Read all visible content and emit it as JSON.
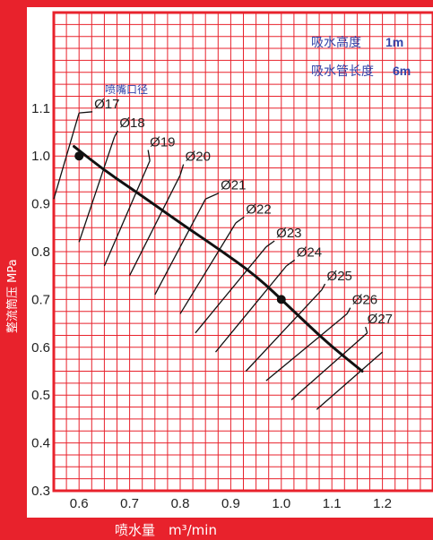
{
  "chart_data": {
    "type": "line",
    "xlabel_text": "喷水量",
    "xlabel_unit": "m³/min",
    "ylabel": "整流筒压 MPa",
    "xlim": [
      0.55,
      1.3
    ],
    "ylim": [
      0.3,
      1.3
    ],
    "xticks": [
      "0.6",
      "0.7",
      "0.8",
      "0.9",
      "1.0",
      "1.1",
      "1.2"
    ],
    "yticks": [
      "0.3",
      "0.4",
      "0.5",
      "0.6",
      "0.7",
      "0.8",
      "0.9",
      "1.0",
      "1.1"
    ],
    "series": [
      {
        "x": [
          0.59,
          0.65,
          0.72,
          0.8,
          0.87,
          0.95,
          1.02,
          1.09,
          1.16
        ],
        "y": [
          1.02,
          0.97,
          0.92,
          0.86,
          0.81,
          0.75,
          0.68,
          0.61,
          0.55
        ]
      }
    ],
    "points": [
      {
        "x": 0.6,
        "y": 1.0
      },
      {
        "x": 1.0,
        "y": 0.7
      }
    ],
    "nozzle_caption": "喷嘴口径",
    "nozzles": [
      {
        "label": "Ø17",
        "x1": 0.55,
        "y1": 0.91,
        "x2": 0.6,
        "y2": 1.09,
        "lx": 0.63,
        "ly": 1.1
      },
      {
        "label": "Ø18",
        "x1": 0.6,
        "y1": 0.82,
        "x2": 0.67,
        "y2": 1.04,
        "lx": 0.68,
        "ly": 1.06
      },
      {
        "label": "Ø19",
        "x1": 0.65,
        "y1": 0.77,
        "x2": 0.74,
        "y2": 0.99,
        "lx": 0.74,
        "ly": 1.02
      },
      {
        "label": "Ø20",
        "x1": 0.7,
        "y1": 0.75,
        "x2": 0.8,
        "y2": 0.96,
        "lx": 0.81,
        "ly": 0.99
      },
      {
        "label": "Ø21",
        "x1": 0.75,
        "y1": 0.71,
        "x2": 0.85,
        "y2": 0.91,
        "lx": 0.88,
        "ly": 0.93
      },
      {
        "label": "Ø22",
        "x1": 0.8,
        "y1": 0.67,
        "x2": 0.91,
        "y2": 0.86,
        "lx": 0.93,
        "ly": 0.88
      },
      {
        "label": "Ø23",
        "x1": 0.83,
        "y1": 0.63,
        "x2": 0.97,
        "y2": 0.81,
        "lx": 0.99,
        "ly": 0.83
      },
      {
        "label": "Ø24",
        "x1": 0.87,
        "y1": 0.59,
        "x2": 1.01,
        "y2": 0.77,
        "lx": 1.03,
        "ly": 0.79
      },
      {
        "label": "Ø25",
        "x1": 0.93,
        "y1": 0.55,
        "x2": 1.08,
        "y2": 0.72,
        "lx": 1.09,
        "ly": 0.74
      },
      {
        "label": "Ø26",
        "x1": 0.97,
        "y1": 0.53,
        "x2": 1.13,
        "y2": 0.67,
        "lx": 1.14,
        "ly": 0.69
      },
      {
        "label": "Ø27",
        "x1": 1.02,
        "y1": 0.49,
        "x2": 1.17,
        "y2": 0.63,
        "lx": 1.17,
        "ly": 0.65
      },
      {
        "label": "",
        "x1": 1.07,
        "y1": 0.47,
        "x2": 1.2,
        "y2": 0.59,
        "lx": 1.2,
        "ly": 0.6
      }
    ],
    "notes": [
      {
        "label": "吸水高度",
        "value": "1m"
      },
      {
        "label": "吸水管长度",
        "value": "6m"
      }
    ],
    "grid": true,
    "colors": {
      "frame": "#e8222c",
      "grid": "#e8222c",
      "curve": "#111111",
      "nozzle_line": "#111111",
      "note_text": "#3344aa"
    }
  }
}
